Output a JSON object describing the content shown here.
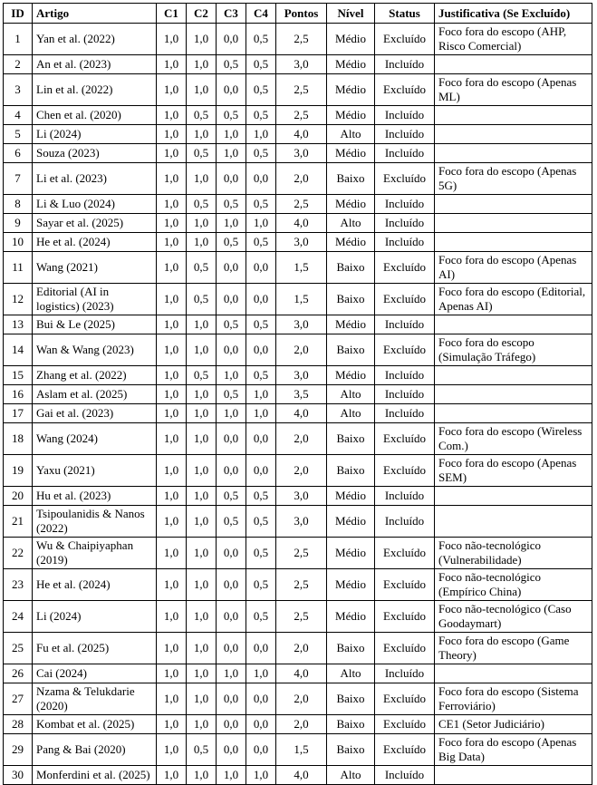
{
  "headers": [
    "ID",
    "Artigo",
    "C1",
    "C2",
    "C3",
    "C4",
    "Pontos",
    "Nível",
    "Status",
    "Justificativa (Se Excluído)"
  ],
  "rows": [
    {
      "id": "1",
      "artigo": "Yan et al. (2022)",
      "c1": "1,0",
      "c2": "1,0",
      "c3": "0,0",
      "c4": "0,5",
      "pontos": "2,5",
      "nivel": "Médio",
      "status": "Excluído",
      "just": "Foco fora do escopo (AHP, Risco Comercial)"
    },
    {
      "id": "2",
      "artigo": "An et al. (2023)",
      "c1": "1,0",
      "c2": "1,0",
      "c3": "0,5",
      "c4": "0,5",
      "pontos": "3,0",
      "nivel": "Médio",
      "status": "Incluído",
      "just": ""
    },
    {
      "id": "3",
      "artigo": "Lin et al. (2022)",
      "c1": "1,0",
      "c2": "1,0",
      "c3": "0,0",
      "c4": "0,5",
      "pontos": "2,5",
      "nivel": "Médio",
      "status": "Excluído",
      "just": "Foco fora do escopo (Apenas ML)"
    },
    {
      "id": "4",
      "artigo": "Chen et al. (2020)",
      "c1": "1,0",
      "c2": "0,5",
      "c3": "0,5",
      "c4": "0,5",
      "pontos": "2,5",
      "nivel": "Médio",
      "status": "Incluído",
      "just": ""
    },
    {
      "id": "5",
      "artigo": "Li (2024)",
      "c1": "1,0",
      "c2": "1,0",
      "c3": "1,0",
      "c4": "1,0",
      "pontos": "4,0",
      "nivel": "Alto",
      "status": "Incluído",
      "just": ""
    },
    {
      "id": "6",
      "artigo": "Souza (2023)",
      "c1": "1,0",
      "c2": "0,5",
      "c3": "1,0",
      "c4": "0,5",
      "pontos": "3,0",
      "nivel": "Médio",
      "status": "Incluído",
      "just": ""
    },
    {
      "id": "7",
      "artigo": "Li et al. (2023)",
      "c1": "1,0",
      "c2": "1,0",
      "c3": "0,0",
      "c4": "0,0",
      "pontos": "2,0",
      "nivel": "Baixo",
      "status": "Excluído",
      "just": "Foco fora do escopo (Apenas 5G)"
    },
    {
      "id": "8",
      "artigo": "Li & Luo (2024)",
      "c1": "1,0",
      "c2": "0,5",
      "c3": "0,5",
      "c4": "0,5",
      "pontos": "2,5",
      "nivel": "Médio",
      "status": "Incluído",
      "just": ""
    },
    {
      "id": "9",
      "artigo": "Sayar et al. (2025)",
      "c1": "1,0",
      "c2": "1,0",
      "c3": "1,0",
      "c4": "1,0",
      "pontos": "4,0",
      "nivel": "Alto",
      "status": "Incluído",
      "just": ""
    },
    {
      "id": "10",
      "artigo": "He et al. (2024)",
      "c1": "1,0",
      "c2": "1,0",
      "c3": "0,5",
      "c4": "0,5",
      "pontos": "3,0",
      "nivel": "Médio",
      "status": "Incluído",
      "just": ""
    },
    {
      "id": "11",
      "artigo": "Wang (2021)",
      "c1": "1,0",
      "c2": "0,5",
      "c3": "0,0",
      "c4": "0,0",
      "pontos": "1,5",
      "nivel": "Baixo",
      "status": "Excluído",
      "just": "Foco fora do escopo (Apenas AI)"
    },
    {
      "id": "12",
      "artigo": "Editorial (AI in logistics) (2023)",
      "c1": "1,0",
      "c2": "0,5",
      "c3": "0,0",
      "c4": "0,0",
      "pontos": "1,5",
      "nivel": "Baixo",
      "status": "Excluído",
      "just": "Foco fora do escopo (Editorial, Apenas AI)"
    },
    {
      "id": "13",
      "artigo": "Bui & Le (2025)",
      "c1": "1,0",
      "c2": "1,0",
      "c3": "0,5",
      "c4": "0,5",
      "pontos": "3,0",
      "nivel": "Médio",
      "status": "Incluído",
      "just": ""
    },
    {
      "id": "14",
      "artigo": "Wan & Wang (2023)",
      "c1": "1,0",
      "c2": "1,0",
      "c3": "0,0",
      "c4": "0,0",
      "pontos": "2,0",
      "nivel": "Baixo",
      "status": "Excluído",
      "just": "Foco fora do escopo (Simulação Tráfego)"
    },
    {
      "id": "15",
      "artigo": "Zhang et al. (2022)",
      "c1": "1,0",
      "c2": "0,5",
      "c3": "1,0",
      "c4": "0,5",
      "pontos": "3,0",
      "nivel": "Médio",
      "status": "Incluído",
      "just": ""
    },
    {
      "id": "16",
      "artigo": "Aslam et al. (2025)",
      "c1": "1,0",
      "c2": "1,0",
      "c3": "0,5",
      "c4": "1,0",
      "pontos": "3,5",
      "nivel": "Alto",
      "status": "Incluído",
      "just": ""
    },
    {
      "id": "17",
      "artigo": "Gai et al. (2023)",
      "c1": "1,0",
      "c2": "1,0",
      "c3": "1,0",
      "c4": "1,0",
      "pontos": "4,0",
      "nivel": "Alto",
      "status": "Incluído",
      "just": ""
    },
    {
      "id": "18",
      "artigo": "Wang (2024)",
      "c1": "1,0",
      "c2": "1,0",
      "c3": "0,0",
      "c4": "0,0",
      "pontos": "2,0",
      "nivel": "Baixo",
      "status": "Excluído",
      "just": "Foco fora do escopo (Wireless Com.)"
    },
    {
      "id": "19",
      "artigo": "Yaxu (2021)",
      "c1": "1,0",
      "c2": "1,0",
      "c3": "0,0",
      "c4": "0,0",
      "pontos": "2,0",
      "nivel": "Baixo",
      "status": "Excluído",
      "just": "Foco fora do escopo (Apenas SEM)"
    },
    {
      "id": "20",
      "artigo": "Hu et al. (2023)",
      "c1": "1,0",
      "c2": "1,0",
      "c3": "0,5",
      "c4": "0,5",
      "pontos": "3,0",
      "nivel": "Médio",
      "status": "Incluído",
      "just": ""
    },
    {
      "id": "21",
      "artigo": "Tsipoulanidis & Nanos (2022)",
      "c1": "1,0",
      "c2": "1,0",
      "c3": "0,5",
      "c4": "0,5",
      "pontos": "3,0",
      "nivel": "Médio",
      "status": "Incluído",
      "just": ""
    },
    {
      "id": "22",
      "artigo": "Wu & Chaipiyaphan (2019)",
      "c1": "1,0",
      "c2": "1,0",
      "c3": "0,0",
      "c4": "0,5",
      "pontos": "2,5",
      "nivel": "Médio",
      "status": "Excluído",
      "just": "Foco não-tecnológico (Vulnerabilidade)"
    },
    {
      "id": "23",
      "artigo": "He et al. (2024)",
      "c1": "1,0",
      "c2": "1,0",
      "c3": "0,0",
      "c4": "0,5",
      "pontos": "2,5",
      "nivel": "Médio",
      "status": "Excluído",
      "just": "Foco não-tecnológico (Empírico China)"
    },
    {
      "id": "24",
      "artigo": "Li (2024)",
      "c1": "1,0",
      "c2": "1,0",
      "c3": "0,0",
      "c4": "0,5",
      "pontos": "2,5",
      "nivel": "Médio",
      "status": "Excluído",
      "just": "Foco não-tecnológico (Caso Goodaymart)"
    },
    {
      "id": "25",
      "artigo": "Fu et al. (2025)",
      "c1": "1,0",
      "c2": "1,0",
      "c3": "0,0",
      "c4": "0,0",
      "pontos": "2,0",
      "nivel": "Baixo",
      "status": "Excluído",
      "just": "Foco fora do escopo (Game Theory)"
    },
    {
      "id": "26",
      "artigo": "Cai (2024)",
      "c1": "1,0",
      "c2": "1,0",
      "c3": "1,0",
      "c4": "1,0",
      "pontos": "4,0",
      "nivel": "Alto",
      "status": "Incluído",
      "just": ""
    },
    {
      "id": "27",
      "artigo": "Nzama & Telukdarie (2020)",
      "c1": "1,0",
      "c2": "1,0",
      "c3": "0,0",
      "c4": "0,0",
      "pontos": "2,0",
      "nivel": "Baixo",
      "status": "Excluído",
      "just": "Foco fora do escopo (Sistema Ferroviário)"
    },
    {
      "id": "28",
      "artigo": "Kombat et al. (2025)",
      "c1": "1,0",
      "c2": "1,0",
      "c3": "0,0",
      "c4": "0,0",
      "pontos": "2,0",
      "nivel": "Baixo",
      "status": "Excluído",
      "just": "CE1 (Setor Judiciário)"
    },
    {
      "id": "29",
      "artigo": "Pang & Bai (2020)",
      "c1": "1,0",
      "c2": "0,5",
      "c3": "0,0",
      "c4": "0,0",
      "pontos": "1,5",
      "nivel": "Baixo",
      "status": "Excluído",
      "just": "Foco fora do escopo (Apenas Big Data)"
    },
    {
      "id": "30",
      "artigo": "Monferdini et al. (2025)",
      "c1": "1,0",
      "c2": "1,0",
      "c3": "1,0",
      "c4": "1,0",
      "pontos": "4,0",
      "nivel": "Alto",
      "status": "Incluído",
      "just": ""
    }
  ]
}
